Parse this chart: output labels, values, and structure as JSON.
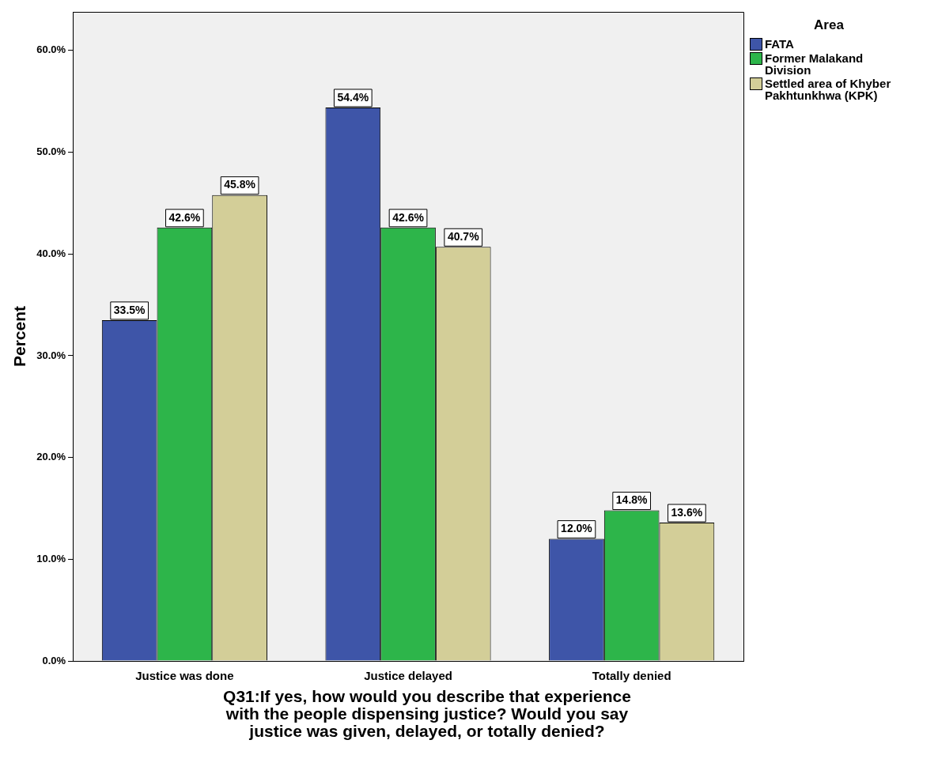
{
  "chart_data": {
    "type": "bar",
    "xlabel": "Q31:If yes, how would you describe that experience with the people dispensing justice? Would you say justice was given, delayed, or totally denied?",
    "ylabel": "Percent",
    "legend_title": "Area",
    "legend": "right",
    "grid": false,
    "categories": [
      "Justice was done",
      "Justice delayed",
      "Totally denied"
    ],
    "ylim": [
      0,
      63.8
    ],
    "yticks": [
      {
        "value": 0,
        "label": "0.0%"
      },
      {
        "value": 10,
        "label": "10.0%"
      },
      {
        "value": 20,
        "label": "20.0%"
      },
      {
        "value": 30,
        "label": "30.0%"
      },
      {
        "value": 40,
        "label": "40.0%"
      },
      {
        "value": 50,
        "label": "50.0%"
      },
      {
        "value": 60,
        "label": "60.0%"
      }
    ],
    "series": [
      {
        "name": "FATA",
        "color": "#3e55a8",
        "values": [
          33.5,
          54.4,
          12.0
        ],
        "value_labels": [
          "33.5%",
          "54.4%",
          "12.0%"
        ]
      },
      {
        "name": "Former Malakand Division",
        "color": "#2db54a",
        "values": [
          42.6,
          42.6,
          14.8
        ],
        "value_labels": [
          "42.6%",
          "42.6%",
          "14.8%"
        ]
      },
      {
        "name": "Settled area of Khyber Pakhtunkhwa (KPK)",
        "color": "#d3ce98",
        "values": [
          45.8,
          40.7,
          13.6
        ],
        "value_labels": [
          "45.8%",
          "40.7%",
          "13.6%"
        ]
      }
    ]
  }
}
